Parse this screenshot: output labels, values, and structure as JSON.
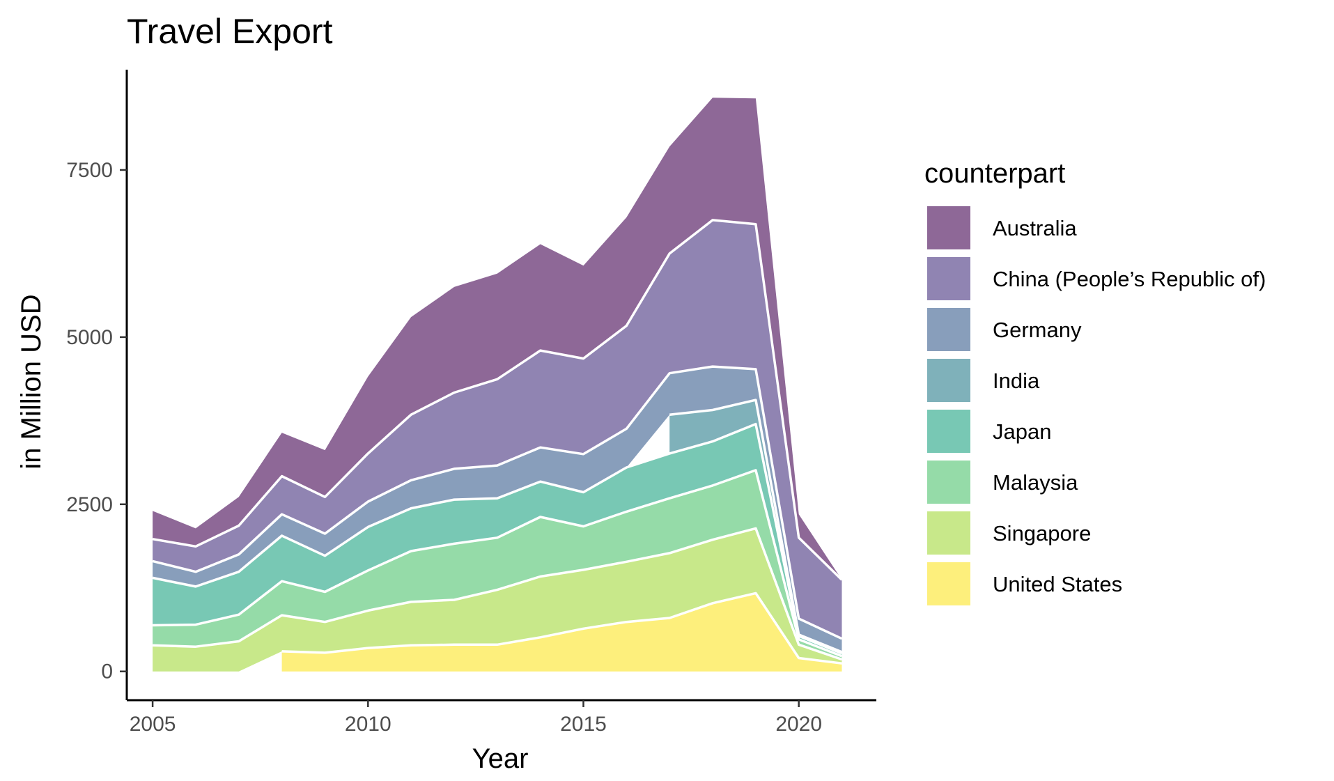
{
  "chart_data": {
    "type": "area",
    "stacked": true,
    "title": "Travel Export",
    "xlabel": "Year",
    "ylabel": "in Million USD",
    "xlim": [
      2004.4,
      2021.8
    ],
    "ylim": [
      -430,
      9000
    ],
    "x_ticks": [
      2005,
      2010,
      2015,
      2020
    ],
    "y_ticks": [
      0,
      2500,
      5000,
      7500
    ],
    "x_tick_labels": [
      "2005",
      "2010",
      "2015",
      "2020"
    ],
    "y_tick_labels": [
      "0",
      "2500",
      "5000",
      "7500"
    ],
    "grid": false,
    "legend": {
      "title": "counterpart",
      "placement": "right",
      "entries": [
        "Australia",
        "China (People’s Republic of)",
        "Germany",
        "India",
        "Japan",
        "Malaysia",
        "Singapore",
        "United States"
      ]
    },
    "series": [
      {
        "name": "United States",
        "color": "#fdef7c",
        "points": [
          [
            2008,
            300
          ],
          [
            2009,
            280
          ],
          [
            2010,
            350
          ],
          [
            2011,
            390
          ],
          [
            2012,
            400
          ],
          [
            2013,
            400
          ],
          [
            2014,
            510
          ],
          [
            2015,
            640
          ],
          [
            2016,
            740
          ],
          [
            2017,
            800
          ],
          [
            2018,
            1020
          ],
          [
            2019,
            1170
          ],
          [
            2020,
            200
          ],
          [
            2021,
            120
          ]
        ]
      },
      {
        "name": "Singapore",
        "color": "#c8e88a",
        "points": [
          [
            2005,
            390
          ],
          [
            2006,
            370
          ],
          [
            2007,
            450
          ],
          [
            2008,
            540
          ],
          [
            2008,
            540
          ],
          [
            2009,
            460
          ],
          [
            2010,
            560
          ],
          [
            2011,
            650
          ],
          [
            2012,
            670
          ],
          [
            2013,
            820
          ],
          [
            2014,
            910
          ],
          [
            2015,
            880
          ],
          [
            2016,
            900
          ],
          [
            2017,
            970
          ],
          [
            2018,
            950
          ],
          [
            2019,
            970
          ],
          [
            2020,
            200
          ],
          [
            2021,
            60
          ]
        ]
      },
      {
        "name": "Malaysia",
        "color": "#95dba8",
        "points": [
          [
            2005,
            300
          ],
          [
            2006,
            330
          ],
          [
            2007,
            400
          ],
          [
            2008,
            510
          ],
          [
            2008,
            510
          ],
          [
            2009,
            450
          ],
          [
            2010,
            600
          ],
          [
            2011,
            760
          ],
          [
            2012,
            840
          ],
          [
            2013,
            780
          ],
          [
            2014,
            890
          ],
          [
            2015,
            650
          ],
          [
            2016,
            750
          ],
          [
            2017,
            820
          ],
          [
            2018,
            810
          ],
          [
            2019,
            870
          ],
          [
            2020,
            80
          ],
          [
            2021,
            50
          ]
        ]
      },
      {
        "name": "Japan",
        "color": "#78c8b4",
        "points": [
          [
            2005,
            710
          ],
          [
            2006,
            570
          ],
          [
            2007,
            640
          ],
          [
            2008,
            680
          ],
          [
            2008,
            680
          ],
          [
            2009,
            540
          ],
          [
            2010,
            650
          ],
          [
            2011,
            640
          ],
          [
            2012,
            660
          ],
          [
            2013,
            590
          ],
          [
            2014,
            530
          ],
          [
            2015,
            510
          ],
          [
            2016,
            660
          ],
          [
            2017,
            670
          ],
          [
            2018,
            660
          ],
          [
            2019,
            690
          ],
          [
            2020,
            50
          ],
          [
            2021,
            40
          ]
        ]
      },
      {
        "name": "India",
        "color": "#7fb1ba",
        "points": [
          [
            2017,
            580
          ],
          [
            2018,
            470
          ],
          [
            2019,
            360
          ],
          [
            2020,
            20
          ],
          [
            2021,
            20
          ]
        ]
      },
      {
        "name": "Germany",
        "color": "#889ebb",
        "points": [
          [
            2005,
            250
          ],
          [
            2006,
            220
          ],
          [
            2007,
            260
          ],
          [
            2008,
            320
          ],
          [
            2008,
            320
          ],
          [
            2009,
            330
          ],
          [
            2010,
            380
          ],
          [
            2011,
            420
          ],
          [
            2012,
            460
          ],
          [
            2013,
            490
          ],
          [
            2014,
            510
          ],
          [
            2015,
            570
          ],
          [
            2016,
            580
          ],
          [
            2017,
            620
          ],
          [
            2018,
            650
          ],
          [
            2019,
            460
          ],
          [
            2020,
            240
          ],
          [
            2021,
            200
          ]
        ]
      },
      {
        "name": "China (People’s Republic of)",
        "color": "#9084b2",
        "points": [
          [
            2005,
            330
          ],
          [
            2006,
            380
          ],
          [
            2007,
            430
          ],
          [
            2008,
            570
          ],
          [
            2008,
            570
          ],
          [
            2009,
            550
          ],
          [
            2010,
            720
          ],
          [
            2011,
            980
          ],
          [
            2012,
            1140
          ],
          [
            2013,
            1290
          ],
          [
            2014,
            1450
          ],
          [
            2015,
            1430
          ],
          [
            2016,
            1540
          ],
          [
            2017,
            1790
          ],
          [
            2018,
            2190
          ],
          [
            2019,
            2170
          ],
          [
            2020,
            1210
          ],
          [
            2021,
            880
          ]
        ]
      },
      {
        "name": "Australia",
        "color": "#8e6897",
        "points": [
          [
            2005,
            420
          ],
          [
            2006,
            270
          ],
          [
            2007,
            430
          ],
          [
            2008,
            650
          ],
          [
            2008,
            650
          ],
          [
            2009,
            700
          ],
          [
            2010,
            1150
          ],
          [
            2011,
            1460
          ],
          [
            2012,
            1580
          ],
          [
            2013,
            1580
          ],
          [
            2014,
            1590
          ],
          [
            2015,
            1390
          ],
          [
            2016,
            1620
          ],
          [
            2017,
            1600
          ],
          [
            2018,
            1830
          ],
          [
            2019,
            1880
          ],
          [
            2020,
            350
          ],
          [
            2021,
            0
          ]
        ]
      }
    ]
  }
}
